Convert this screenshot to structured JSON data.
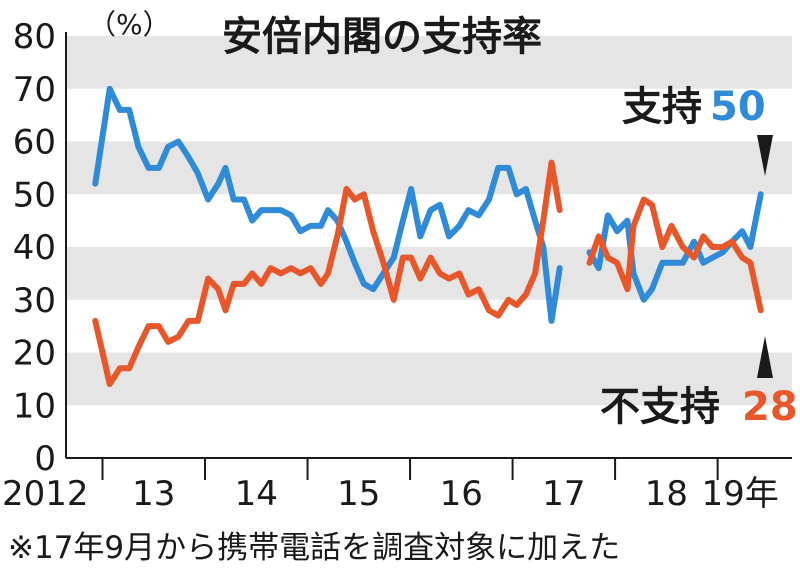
{
  "title": "安倍内閣の支持率",
  "unit_label": "（%）",
  "footnote": "※17年9月から携帯電話を調査対象に加えた",
  "callouts": {
    "support_label": "支持",
    "support_value": "50",
    "disapprove_label": "不支持",
    "disapprove_value": "28"
  },
  "colors": {
    "support": "#2f8ad8",
    "disapprove": "#e8572a",
    "band": "#e5e5e5",
    "text": "#1a1a1a"
  },
  "chart_data": {
    "type": "line",
    "title": "安倍内閣の支持率",
    "ylabel": "（%）",
    "ylim": [
      0,
      80
    ],
    "yticks": [
      0,
      10,
      20,
      30,
      40,
      50,
      60,
      70,
      80
    ],
    "xlim": [
      2012.8,
      2019.55
    ],
    "xtick_labels": [
      "2012",
      "13",
      "14",
      "15",
      "16",
      "17",
      "18",
      "19年"
    ],
    "grid": "alternating horizontal bands",
    "note": "※17年9月から携帯電話を調査対象に加えた",
    "series": [
      {
        "name": "支持",
        "color": "#2f8ad8",
        "end_label": "50",
        "segments": [
          [
            [
              2012.93,
              52
            ],
            [
              2013.07,
              70
            ],
            [
              2013.17,
              66
            ],
            [
              2013.26,
              66
            ],
            [
              2013.35,
              59
            ],
            [
              2013.45,
              55
            ],
            [
              2013.55,
              55
            ],
            [
              2013.64,
              59
            ],
            [
              2013.74,
              60
            ],
            [
              2013.84,
              57
            ],
            [
              2013.93,
              54
            ],
            [
              2014.03,
              49
            ],
            [
              2014.13,
              52
            ],
            [
              2014.2,
              55
            ],
            [
              2014.28,
              49
            ],
            [
              2014.38,
              49
            ],
            [
              2014.46,
              45
            ],
            [
              2014.55,
              47
            ],
            [
              2014.64,
              47
            ],
            [
              2014.74,
              47
            ],
            [
              2014.84,
              46
            ],
            [
              2014.93,
              43
            ],
            [
              2015.03,
              44
            ],
            [
              2015.13,
              44
            ],
            [
              2015.2,
              47
            ],
            [
              2015.29,
              45
            ],
            [
              2015.38,
              41
            ],
            [
              2015.46,
              37
            ],
            [
              2015.55,
              33
            ],
            [
              2015.64,
              32
            ],
            [
              2015.74,
              35
            ],
            [
              2015.84,
              38
            ],
            [
              2015.93,
              45
            ],
            [
              2016.01,
              51
            ],
            [
              2016.1,
              42
            ],
            [
              2016.2,
              47
            ],
            [
              2016.29,
              48
            ],
            [
              2016.38,
              42
            ],
            [
              2016.48,
              44
            ],
            [
              2016.57,
              47
            ],
            [
              2016.67,
              46
            ],
            [
              2016.77,
              49
            ],
            [
              2016.86,
              55
            ],
            [
              2016.96,
              55
            ],
            [
              2017.04,
              50
            ],
            [
              2017.13,
              51
            ],
            [
              2017.22,
              45
            ],
            [
              2017.3,
              40
            ],
            [
              2017.38,
              26
            ],
            [
              2017.46,
              36
            ]
          ],
          [
            [
              2017.75,
              39
            ],
            [
              2017.84,
              36
            ],
            [
              2017.93,
              46
            ],
            [
              2018.02,
              43
            ],
            [
              2018.12,
              45
            ],
            [
              2018.18,
              35
            ],
            [
              2018.28,
              30
            ],
            [
              2018.36,
              32
            ],
            [
              2018.46,
              37
            ],
            [
              2018.55,
              37
            ],
            [
              2018.66,
              37
            ],
            [
              2018.77,
              41
            ],
            [
              2018.86,
              37
            ],
            [
              2018.95,
              38
            ],
            [
              2019.05,
              39
            ],
            [
              2019.14,
              41
            ],
            [
              2019.24,
              43
            ],
            [
              2019.32,
              40
            ],
            [
              2019.42,
              50
            ]
          ]
        ]
      },
      {
        "name": "不支持",
        "color": "#e8572a",
        "end_label": "28",
        "segments": [
          [
            [
              2012.93,
              26
            ],
            [
              2013.07,
              14
            ],
            [
              2013.17,
              17
            ],
            [
              2013.26,
              17
            ],
            [
              2013.35,
              21
            ],
            [
              2013.45,
              25
            ],
            [
              2013.55,
              25
            ],
            [
              2013.64,
              22
            ],
            [
              2013.74,
              23
            ],
            [
              2013.84,
              26
            ],
            [
              2013.93,
              26
            ],
            [
              2014.03,
              34
            ],
            [
              2014.13,
              32
            ],
            [
              2014.2,
              28
            ],
            [
              2014.28,
              33
            ],
            [
              2014.38,
              33
            ],
            [
              2014.46,
              35
            ],
            [
              2014.55,
              33
            ],
            [
              2014.64,
              36
            ],
            [
              2014.74,
              35
            ],
            [
              2014.84,
              36
            ],
            [
              2014.93,
              35
            ],
            [
              2015.03,
              36
            ],
            [
              2015.13,
              33
            ],
            [
              2015.2,
              35
            ],
            [
              2015.29,
              42
            ],
            [
              2015.38,
              51
            ],
            [
              2015.46,
              49
            ],
            [
              2015.55,
              50
            ],
            [
              2015.64,
              43
            ],
            [
              2015.74,
              37
            ],
            [
              2015.84,
              30
            ],
            [
              2015.93,
              38
            ],
            [
              2016.01,
              38
            ],
            [
              2016.1,
              34
            ],
            [
              2016.2,
              38
            ],
            [
              2016.29,
              35
            ],
            [
              2016.38,
              34
            ],
            [
              2016.48,
              35
            ],
            [
              2016.57,
              31
            ],
            [
              2016.67,
              32
            ],
            [
              2016.77,
              28
            ],
            [
              2016.86,
              27
            ],
            [
              2016.96,
              30
            ],
            [
              2017.04,
              29
            ],
            [
              2017.13,
              31
            ],
            [
              2017.22,
              35
            ],
            [
              2017.3,
              45
            ],
            [
              2017.38,
              56
            ],
            [
              2017.46,
              47
            ]
          ],
          [
            [
              2017.75,
              37
            ],
            [
              2017.84,
              42
            ],
            [
              2017.93,
              38
            ],
            [
              2018.02,
              37
            ],
            [
              2018.12,
              32
            ],
            [
              2018.18,
              44
            ],
            [
              2018.28,
              49
            ],
            [
              2018.36,
              48
            ],
            [
              2018.46,
              40
            ],
            [
              2018.55,
              44
            ],
            [
              2018.66,
              40
            ],
            [
              2018.77,
              38
            ],
            [
              2018.86,
              42
            ],
            [
              2018.95,
              40
            ],
            [
              2019.05,
              40
            ],
            [
              2019.14,
              41
            ],
            [
              2019.24,
              38
            ],
            [
              2019.32,
              37
            ],
            [
              2019.42,
              28
            ]
          ]
        ]
      }
    ]
  }
}
